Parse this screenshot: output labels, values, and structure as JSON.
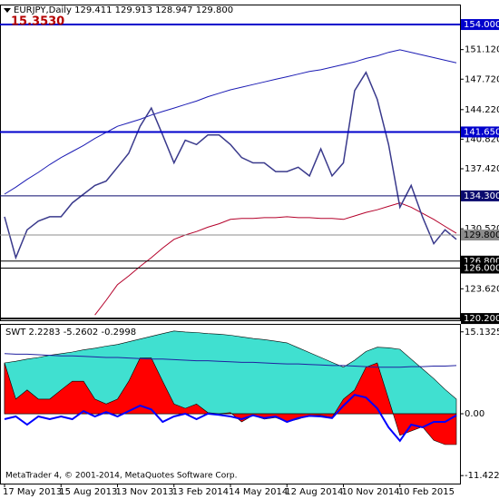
{
  "chart_data": [
    {
      "type": "line",
      "title": "EURJPY,Daily  129.411 129.913 128.947 129.800",
      "annotation": "15.3530",
      "categories": [
        "17 May 2013",
        null,
        null,
        null,
        null,
        "15 Aug 2013",
        null,
        null,
        null,
        null,
        "13 Nov 2013",
        null,
        null,
        null,
        null,
        "13 Feb 2014",
        null,
        null,
        null,
        null,
        "14 May 2014",
        null,
        null,
        null,
        null,
        "12 Aug 2014",
        null,
        null,
        null,
        null,
        "10 Nov 2014",
        null,
        null,
        null,
        null,
        "10 Feb 2015",
        null,
        null,
        null,
        null,
        null
      ],
      "series": [
        {
          "color": "#1c1cb4",
          "values": [
            134.5,
            135.3,
            136.2,
            137.0,
            137.9,
            138.7,
            139.4,
            140.1,
            140.9,
            141.6,
            142.3,
            142.7,
            143.1,
            143.6,
            144.0,
            144.4,
            144.8,
            145.2,
            145.7,
            146.1,
            146.5,
            146.8,
            147.1,
            147.4,
            147.7,
            148.0,
            148.3,
            148.6,
            148.8,
            149.1,
            149.4,
            149.7,
            150.1,
            150.4,
            150.8,
            151.1,
            150.8,
            150.5,
            150.2,
            149.9,
            149.6
          ]
        },
        {
          "color": "#b4002a",
          "values": [
            null,
            null,
            null,
            null,
            null,
            null,
            null,
            null,
            120.6,
            122.3,
            124.1,
            125.1,
            126.2,
            127.2,
            128.3,
            129.3,
            129.8,
            130.2,
            130.7,
            131.1,
            131.6,
            131.7,
            131.7,
            131.8,
            131.8,
            131.9,
            131.8,
            131.8,
            131.7,
            131.7,
            131.6,
            132.0,
            132.4,
            132.7,
            133.1,
            133.5,
            133.0,
            132.3,
            131.6,
            130.8,
            130.0
          ]
        },
        {
          "color": "#3a3a8c",
          "values": [
            131.9,
            127.2,
            130.4,
            131.4,
            131.9,
            131.9,
            133.5,
            134.5,
            135.5,
            136.0,
            137.6,
            139.2,
            142.3,
            144.4,
            141.3,
            138.1,
            140.7,
            140.2,
            141.3,
            141.3,
            140.2,
            138.7,
            138.1,
            138.1,
            137.1,
            137.1,
            137.6,
            136.6,
            139.7,
            136.6,
            138.1,
            146.4,
            148.5,
            145.4,
            140.2,
            133.0,
            135.5,
            131.9,
            128.8,
            130.4,
            129.3
          ]
        }
      ],
      "levels": [
        {
          "value": 154.0,
          "label": "154.000",
          "color": "#0000cc"
        },
        {
          "value": 141.65,
          "label": "141.650",
          "color": "#0000cc"
        },
        {
          "value": 134.3,
          "label": "134.300",
          "color": "#0a0a6e"
        },
        {
          "value": 129.8,
          "label": "129.800",
          "color": "#8c8c8c"
        },
        {
          "value": 126.8,
          "label": "126.800",
          "color": "#000000"
        },
        {
          "value": 126.0,
          "label": "126.000",
          "color": "#000000"
        },
        {
          "value": 120.2,
          "label": "120.200",
          "color": "#000000"
        }
      ],
      "ylim": [
        120.0,
        156.3
      ],
      "yticks": [
        {
          "value": 151.12,
          "label": "151.120"
        },
        {
          "value": 147.72,
          "label": "147.720"
        },
        {
          "value": 144.22,
          "label": "144.220"
        },
        {
          "value": 140.82,
          "label": "140.820"
        },
        {
          "value": 137.42,
          "label": "137.420"
        },
        {
          "value": 130.52,
          "label": "130.520"
        },
        {
          "value": 123.62,
          "label": "123.620"
        }
      ]
    },
    {
      "type": "area",
      "title": "SWT 2.2283 -5.2602 -0.2998",
      "footer": "MetaTrader 4, © 2001-2014, MetaQuotes Software Corp.",
      "series": [
        {
          "style": "area",
          "color": "#40e0d0",
          "values": [
            9.4,
            9.7,
            10.1,
            10.4,
            10.8,
            11.1,
            11.4,
            11.8,
            12.1,
            12.5,
            12.8,
            13.3,
            13.8,
            14.3,
            14.8,
            15.3,
            15.1,
            15.0,
            14.8,
            14.7,
            14.5,
            14.2,
            13.9,
            13.7,
            13.4,
            13.1,
            12.2,
            11.3,
            10.4,
            9.5,
            8.6,
            9.9,
            11.5,
            12.3,
            12.2,
            11.9,
            10.1,
            8.3,
            6.5,
            4.5,
            2.7
          ]
        },
        {
          "style": "area",
          "color": "#ff0000",
          "values": [
            9.4,
            2.7,
            4.4,
            2.7,
            2.7,
            4.4,
            6.0,
            6.0,
            2.7,
            1.8,
            2.7,
            6.0,
            10.3,
            10.3,
            6.0,
            1.8,
            1.0,
            1.8,
            0.2,
            0,
            0.2,
            -1.5,
            -0.3,
            -1.0,
            -0.7,
            -1.5,
            -1.0,
            -0.3,
            -0.3,
            -0.7,
            2.7,
            4.4,
            8.6,
            9.4,
            2.7,
            -4.0,
            -3.2,
            -2.4,
            -4.9,
            -5.7,
            -5.7
          ]
        },
        {
          "style": "line",
          "color": "#2020a0",
          "values": [
            11.1,
            11.0,
            11.0,
            10.9,
            10.8,
            10.7,
            10.7,
            10.6,
            10.5,
            10.4,
            10.4,
            10.3,
            10.2,
            10.1,
            10.1,
            10.0,
            9.9,
            9.8,
            9.8,
            9.7,
            9.6,
            9.5,
            9.5,
            9.4,
            9.3,
            9.2,
            9.2,
            9.1,
            9.0,
            8.9,
            8.9,
            8.8,
            8.7,
            8.6,
            8.6,
            8.6,
            8.7,
            8.7,
            8.8,
            8.8,
            8.9
          ]
        },
        {
          "style": "line",
          "color": "#0000ff",
          "values": [
            -1,
            -0.5,
            -2,
            -0.5,
            -1,
            -0.5,
            -1,
            0.5,
            -0.5,
            0.3,
            -0.5,
            0.5,
            1.5,
            0.8,
            -1.5,
            -0.5,
            0,
            -1,
            0,
            -0.2,
            -0.5,
            -1,
            -0.3,
            -0.8,
            -0.5,
            -1.5,
            -0.8,
            -0.4,
            -0.5,
            -0.8,
            1.5,
            3.5,
            3,
            1,
            -2.5,
            -5,
            -2,
            -2.5,
            -1.5,
            -1.5,
            -0.3
          ]
        }
      ],
      "ylim": [
        -12.9,
        16.6
      ],
      "yticks": [
        15.1325,
        {
          "value": 0,
          "label": "0.00"
        },
        -11.4225
      ]
    }
  ]
}
